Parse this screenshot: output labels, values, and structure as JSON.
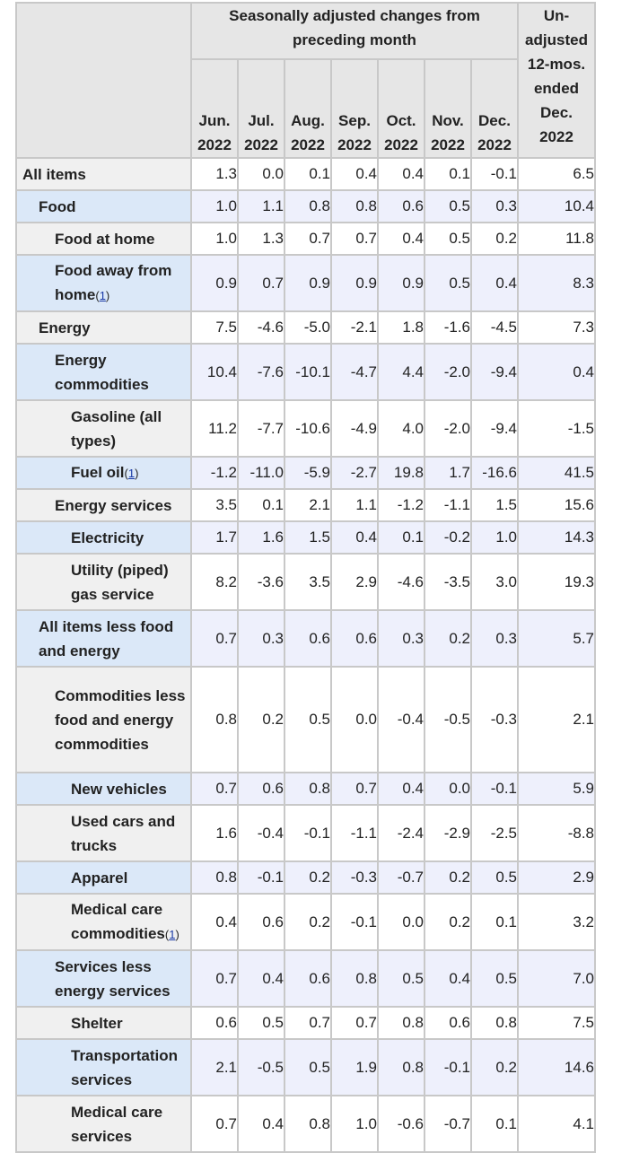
{
  "header": {
    "group_title": "Seasonally adjusted changes from preceding month",
    "months": [
      {
        "month": "Jun.",
        "year": "2022"
      },
      {
        "month": "Jul.",
        "year": "2022"
      },
      {
        "month": "Aug.",
        "year": "2022"
      },
      {
        "month": "Sep.",
        "year": "2022"
      },
      {
        "month": "Oct.",
        "year": "2022"
      },
      {
        "month": "Nov.",
        "year": "2022"
      },
      {
        "month": "Dec.",
        "year": "2022"
      }
    ],
    "unadjusted_lines": [
      "Un-",
      "adjusted",
      "12-mos.",
      "ended",
      "Dec.",
      "2022"
    ]
  },
  "rows": [
    {
      "label": "All items",
      "footnote": "",
      "values": [
        "1.3",
        "0.0",
        "0.1",
        "0.4",
        "0.4",
        "0.1",
        "-0.1"
      ],
      "unadjusted": "6.5"
    },
    {
      "label": "Food",
      "footnote": "",
      "values": [
        "1.0",
        "1.1",
        "0.8",
        "0.8",
        "0.6",
        "0.5",
        "0.3"
      ],
      "unadjusted": "10.4"
    },
    {
      "label": "Food at home",
      "footnote": "",
      "values": [
        "1.0",
        "1.3",
        "0.7",
        "0.7",
        "0.4",
        "0.5",
        "0.2"
      ],
      "unadjusted": "11.8"
    },
    {
      "label": "Food away from home",
      "footnote": "1",
      "values": [
        "0.9",
        "0.7",
        "0.9",
        "0.9",
        "0.9",
        "0.5",
        "0.4"
      ],
      "unadjusted": "8.3"
    },
    {
      "label": "Energy",
      "footnote": "",
      "values": [
        "7.5",
        "-4.6",
        "-5.0",
        "-2.1",
        "1.8",
        "-1.6",
        "-4.5"
      ],
      "unadjusted": "7.3"
    },
    {
      "label": "Energy commodities",
      "footnote": "",
      "values": [
        "10.4",
        "-7.6",
        "-10.1",
        "-4.7",
        "4.4",
        "-2.0",
        "-9.4"
      ],
      "unadjusted": "0.4"
    },
    {
      "label": "Gasoline (all types)",
      "footnote": "",
      "values": [
        "11.2",
        "-7.7",
        "-10.6",
        "-4.9",
        "4.0",
        "-2.0",
        "-9.4"
      ],
      "unadjusted": "-1.5"
    },
    {
      "label": "Fuel oil",
      "footnote": "1",
      "values": [
        "-1.2",
        "-11.0",
        "-5.9",
        "-2.7",
        "19.8",
        "1.7",
        "-16.6"
      ],
      "unadjusted": "41.5"
    },
    {
      "label": "Energy services",
      "footnote": "",
      "values": [
        "3.5",
        "0.1",
        "2.1",
        "1.1",
        "-1.2",
        "-1.1",
        "1.5"
      ],
      "unadjusted": "15.6"
    },
    {
      "label": "Electricity",
      "footnote": "",
      "values": [
        "1.7",
        "1.6",
        "1.5",
        "0.4",
        "0.1",
        "-0.2",
        "1.0"
      ],
      "unadjusted": "14.3"
    },
    {
      "label": "Utility (piped) gas service",
      "footnote": "",
      "values": [
        "8.2",
        "-3.6",
        "3.5",
        "2.9",
        "-4.6",
        "-3.5",
        "3.0"
      ],
      "unadjusted": "19.3"
    },
    {
      "label": "All items less food and energy",
      "footnote": "",
      "values": [
        "0.7",
        "0.3",
        "0.6",
        "0.6",
        "0.3",
        "0.2",
        "0.3"
      ],
      "unadjusted": "5.7"
    },
    {
      "label": "Commodities less food and energy commodities",
      "footnote": "",
      "values": [
        "0.8",
        "0.2",
        "0.5",
        "0.0",
        "-0.4",
        "-0.5",
        "-0.3"
      ],
      "unadjusted": "2.1"
    },
    {
      "label": "New vehicles",
      "footnote": "",
      "values": [
        "0.7",
        "0.6",
        "0.8",
        "0.7",
        "0.4",
        "0.0",
        "-0.1"
      ],
      "unadjusted": "5.9"
    },
    {
      "label": "Used cars and trucks",
      "footnote": "",
      "values": [
        "1.6",
        "-0.4",
        "-0.1",
        "-1.1",
        "-2.4",
        "-2.9",
        "-2.5"
      ],
      "unadjusted": "-8.8"
    },
    {
      "label": "Apparel",
      "footnote": "",
      "values": [
        "0.8",
        "-0.1",
        "0.2",
        "-0.3",
        "-0.7",
        "0.2",
        "0.5"
      ],
      "unadjusted": "2.9"
    },
    {
      "label": "Medical care commodities",
      "footnote": "1",
      "values": [
        "0.4",
        "0.6",
        "0.2",
        "-0.1",
        "0.0",
        "0.2",
        "0.1"
      ],
      "unadjusted": "3.2"
    },
    {
      "label": "Services less energy services",
      "footnote": "",
      "values": [
        "0.7",
        "0.4",
        "0.6",
        "0.8",
        "0.5",
        "0.4",
        "0.5"
      ],
      "unadjusted": "7.0"
    },
    {
      "label": "Shelter",
      "footnote": "",
      "values": [
        "0.6",
        "0.5",
        "0.7",
        "0.7",
        "0.8",
        "0.6",
        "0.8"
      ],
      "unadjusted": "7.5"
    },
    {
      "label": "Transportation services",
      "footnote": "",
      "values": [
        "2.1",
        "-0.5",
        "0.5",
        "1.9",
        "0.8",
        "-0.1",
        "0.2"
      ],
      "unadjusted": "14.6"
    },
    {
      "label": "Medical care services",
      "footnote": "",
      "values": [
        "0.7",
        "0.4",
        "0.8",
        "1.0",
        "-0.6",
        "-0.7",
        "0.1"
      ],
      "unadjusted": "4.1"
    }
  ]
}
